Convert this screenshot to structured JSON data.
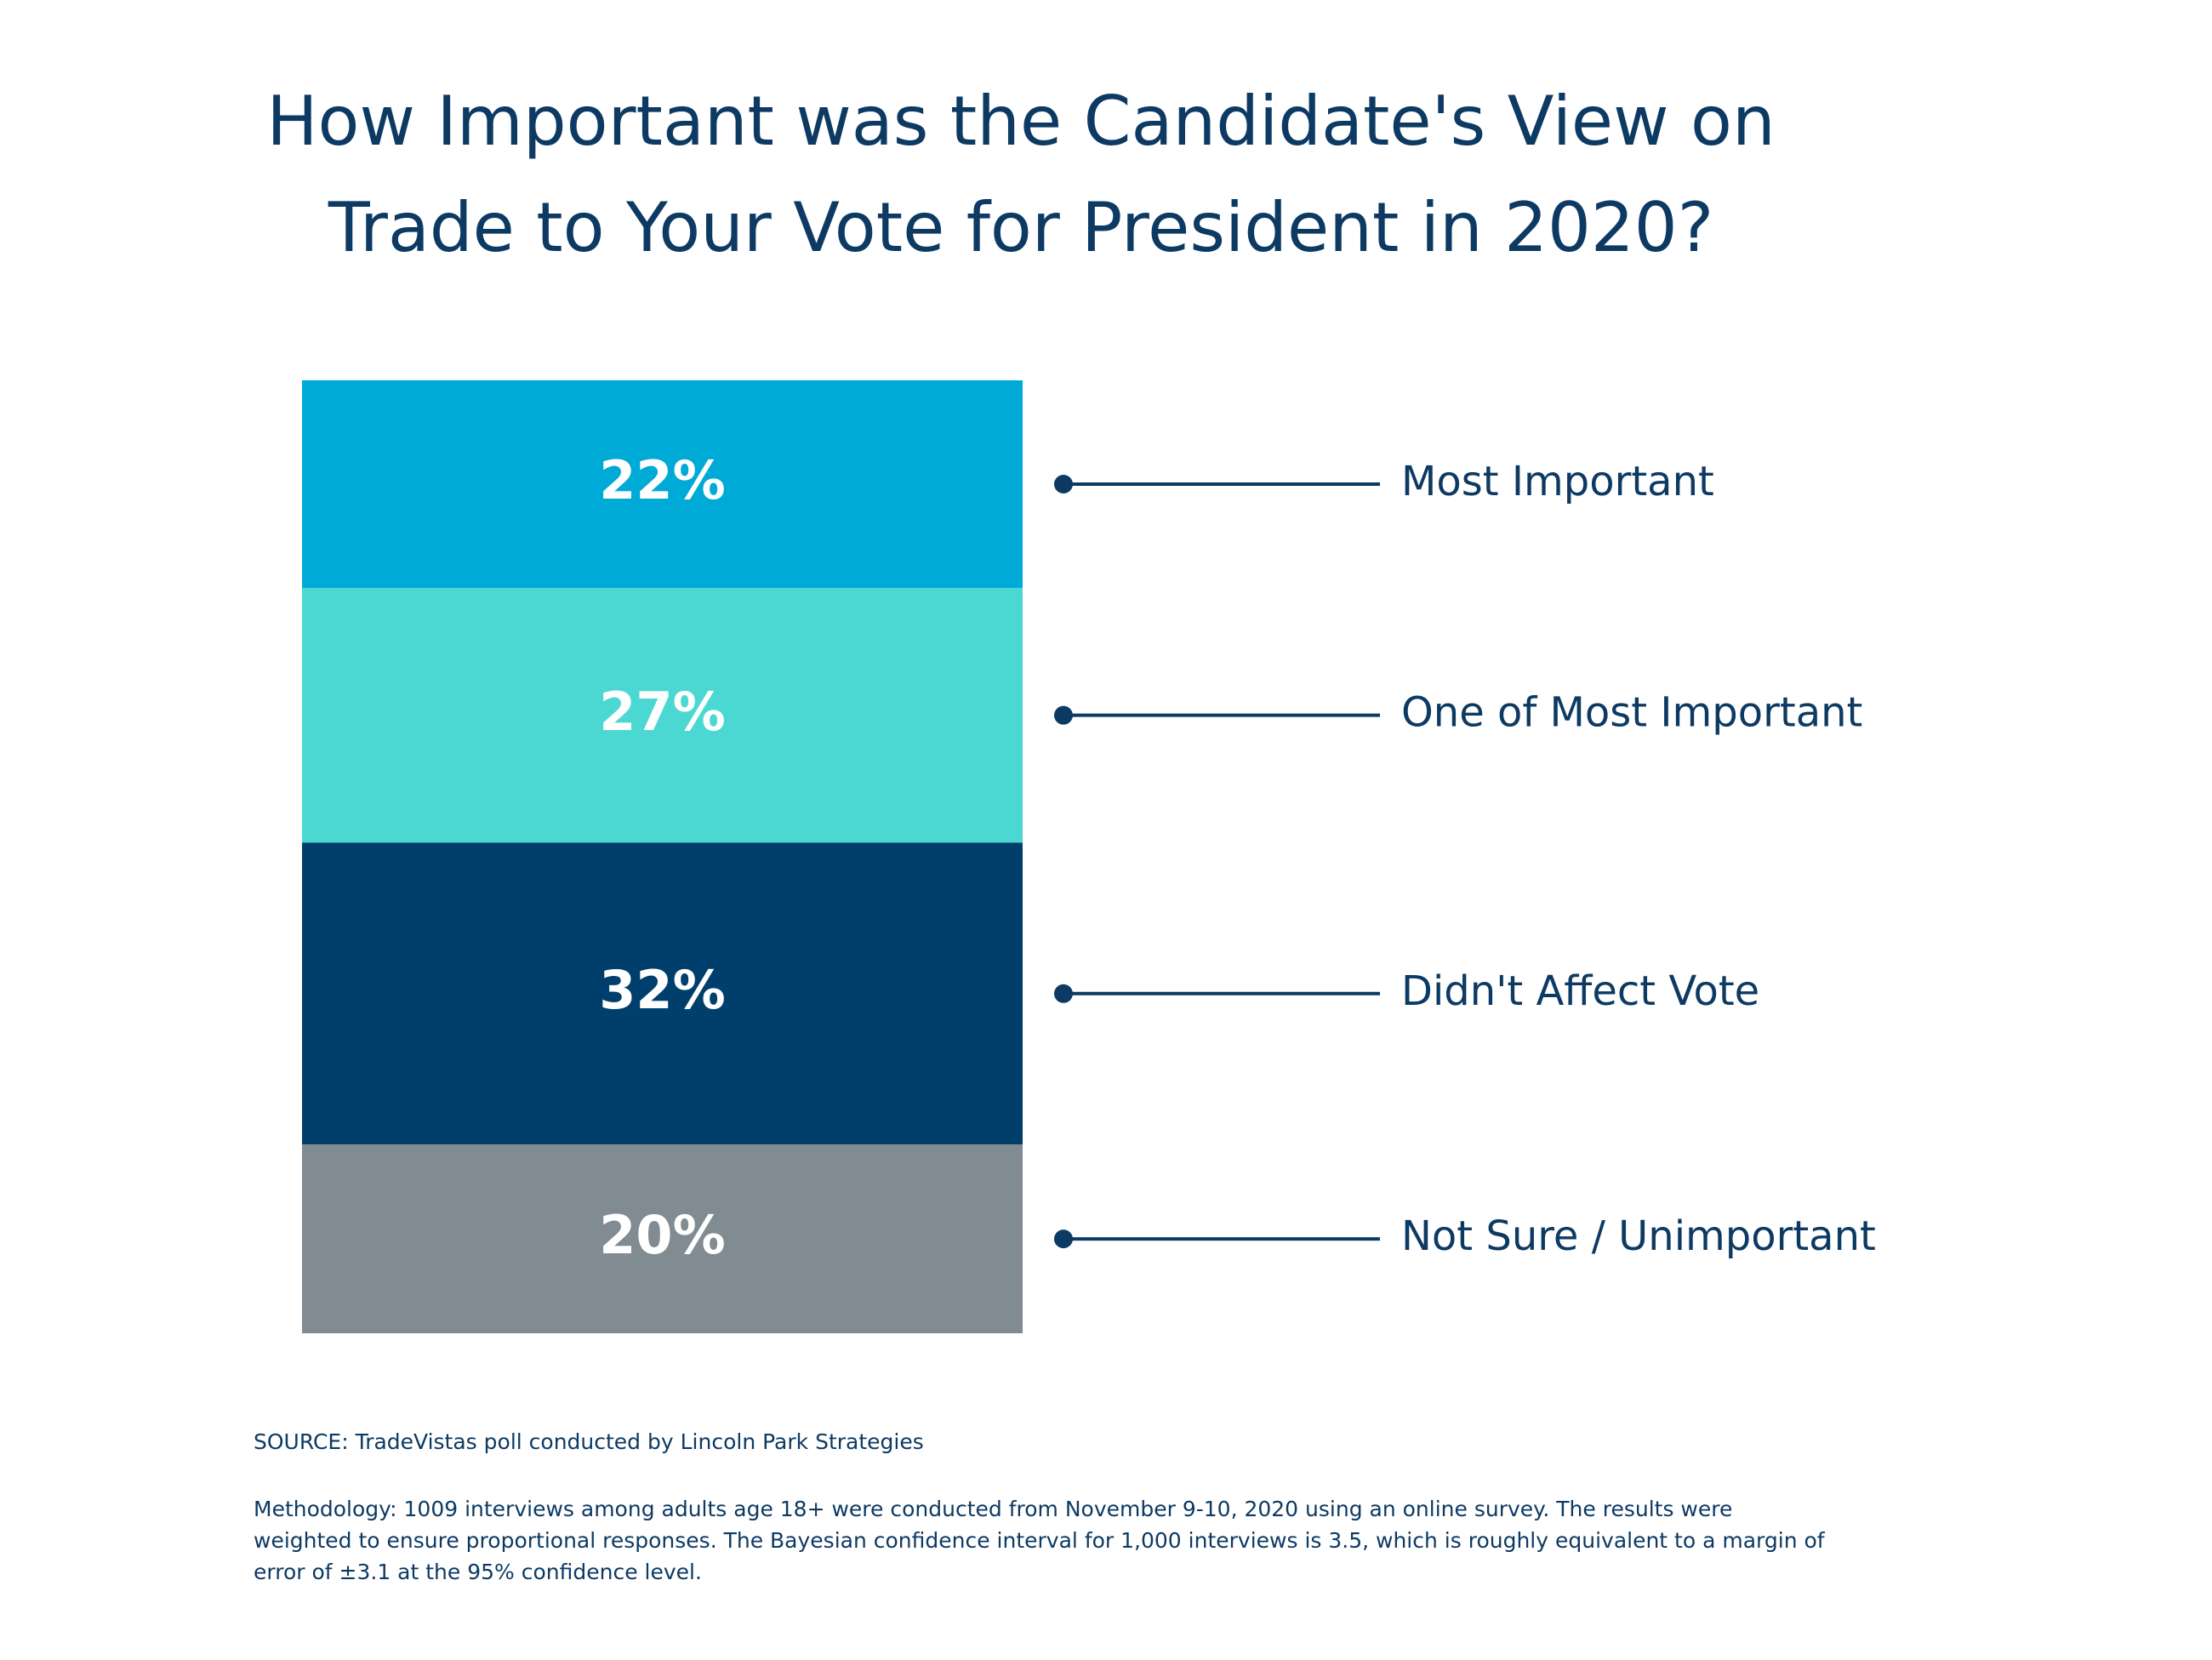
{
  "chart_data": {
    "type": "stacked-bar",
    "title": "How Important was the Candidate's View on Trade to Your Vote for President in 2020?",
    "series": [
      {
        "name": "Most Important",
        "color": "#00aad6",
        "values": [
          22
        ],
        "value_labels": [
          "22%"
        ]
      },
      {
        "name": "One of Most Important",
        "color": "#4cd8d2",
        "values": [
          27
        ],
        "value_labels": [
          "27%"
        ]
      },
      {
        "name": "Didn't Affect Vote",
        "color": "#003f6b",
        "values": [
          32
        ],
        "value_labels": [
          "32%"
        ]
      },
      {
        "name": "Not Sure / Unimportant",
        "color": "#808b92",
        "values": [
          20
        ],
        "value_labels": [
          "20%"
        ]
      }
    ],
    "source": "SOURCE: TradeVistas poll conducted by Lincoln Park Strategies",
    "methodology": "Methodology: 1009 interviews among adults age 18+ were conducted from November 9-10, 2020 using an online survey. The results were weighted to ensure proportional responses. The Bayesian confidence interval for 1,000 interviews is 3.5, which is roughly equivalent to a margin of error of ±3.1 at the 95% confidence level."
  }
}
